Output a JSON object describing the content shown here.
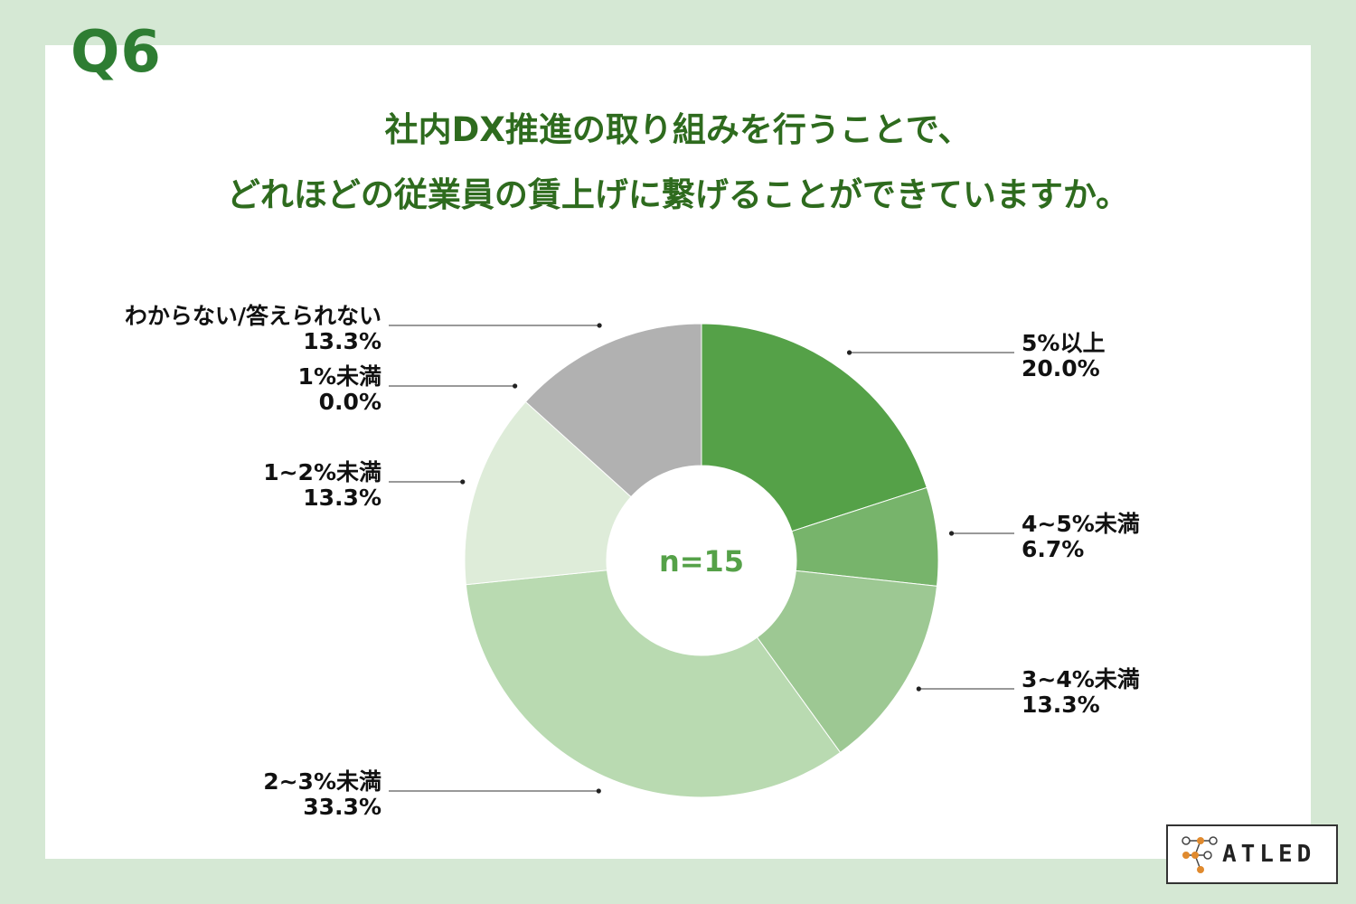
{
  "header": {
    "question_label": "Q6",
    "title_lines": [
      "社内DX推進の取り組みを行うことで、",
      "どれほどの従業員の賃上げに繋げることができていますか。"
    ]
  },
  "chart_data": {
    "type": "pie",
    "center_label": "n=15",
    "slices": [
      {
        "label": "5%以上",
        "value_label": "20.0%",
        "value": 20.0,
        "color": "#55a148"
      },
      {
        "label": "4~5%未満",
        "value_label": "6.7%",
        "value": 6.7,
        "color": "#77b46b"
      },
      {
        "label": "3~4%未満",
        "value_label": "13.3%",
        "value": 13.3,
        "color": "#9dc893"
      },
      {
        "label": "2~3%未満",
        "value_label": "33.3%",
        "value": 33.3,
        "color": "#b9dab1"
      },
      {
        "label": "1~2%未満",
        "value_label": "13.3%",
        "value": 13.3,
        "color": "#deecd9"
      },
      {
        "label": "1%未満",
        "value_label": "0.0%",
        "value": 0.0,
        "color": "#cfe3c9"
      },
      {
        "label": "わからない/答えられない",
        "value_label": "13.3%",
        "value": 13.3,
        "color": "#b1b1b1"
      }
    ]
  },
  "logo": {
    "text": "ATLED"
  }
}
